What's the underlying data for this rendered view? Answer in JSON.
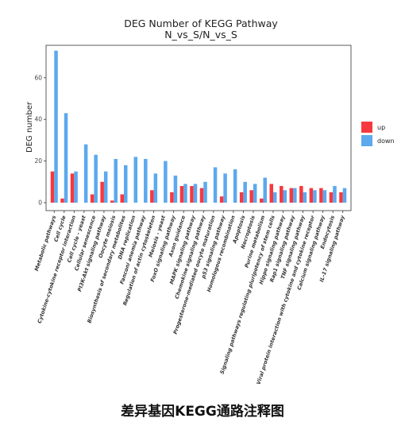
{
  "chart_data": {
    "type": "bar",
    "title": "DEG Number of KEGG Pathway",
    "subtitle": "N_vs_S/N_vs_S",
    "xlabel": "",
    "ylabel": "DEG number",
    "ylim": [
      0,
      75
    ],
    "yticks": [
      0,
      20,
      40,
      60
    ],
    "grid": false,
    "legend_position": "right",
    "categories": [
      "Metabolic pathways",
      "Cell cycle",
      "Cytokine-cytokine receptor interaction",
      "Cell cycle - yeast",
      "Cellular senescence",
      "PI3K-Akt signaling pathway",
      "Oocyte meiosis",
      "Biosynthesis of secondary metabolites",
      "DNA replication",
      "Fanconi anemia pathway",
      "Regulation of actin cytoskeleton",
      "Meiosis - yeast",
      "FoxO signaling pathway",
      "Axon guidance",
      "MAPK signaling pathway",
      "Chemokine signaling pathway",
      "Progesterone-mediated oocyte maturation",
      "p53 signaling pathway",
      "Homologous recombination",
      "Apoptosis",
      "Necroptosis",
      "Purine metabolism",
      "Signaling pathways regulating pluripotency of stem cells",
      "Hippo signaling pathway",
      "Rap1 signaling pathway",
      "TNF signaling pathway",
      "Viral protein interaction with cytokine and cytokine receptor",
      "Calcium signaling pathway",
      "Endocytosis",
      "IL-17 signaling pathway"
    ],
    "series": [
      {
        "name": "up",
        "color": "#F8383F",
        "values": [
          15,
          2,
          14,
          0,
          4,
          10,
          1,
          4,
          0,
          0,
          6,
          0,
          5,
          8,
          8,
          7,
          0,
          3,
          0,
          5,
          6,
          2,
          9,
          8,
          7,
          8,
          7,
          7,
          5,
          5
        ]
      },
      {
        "name": "down",
        "color": "#5CA9EE",
        "values": [
          73,
          43,
          15,
          28,
          23,
          15,
          21,
          18,
          22,
          21,
          14,
          20,
          13,
          9,
          9,
          10,
          17,
          14,
          16,
          10,
          9,
          12,
          5,
          6,
          7,
          5,
          6,
          6,
          8,
          7
        ]
      }
    ]
  },
  "caption": "差异基因KEGG通路注释图"
}
